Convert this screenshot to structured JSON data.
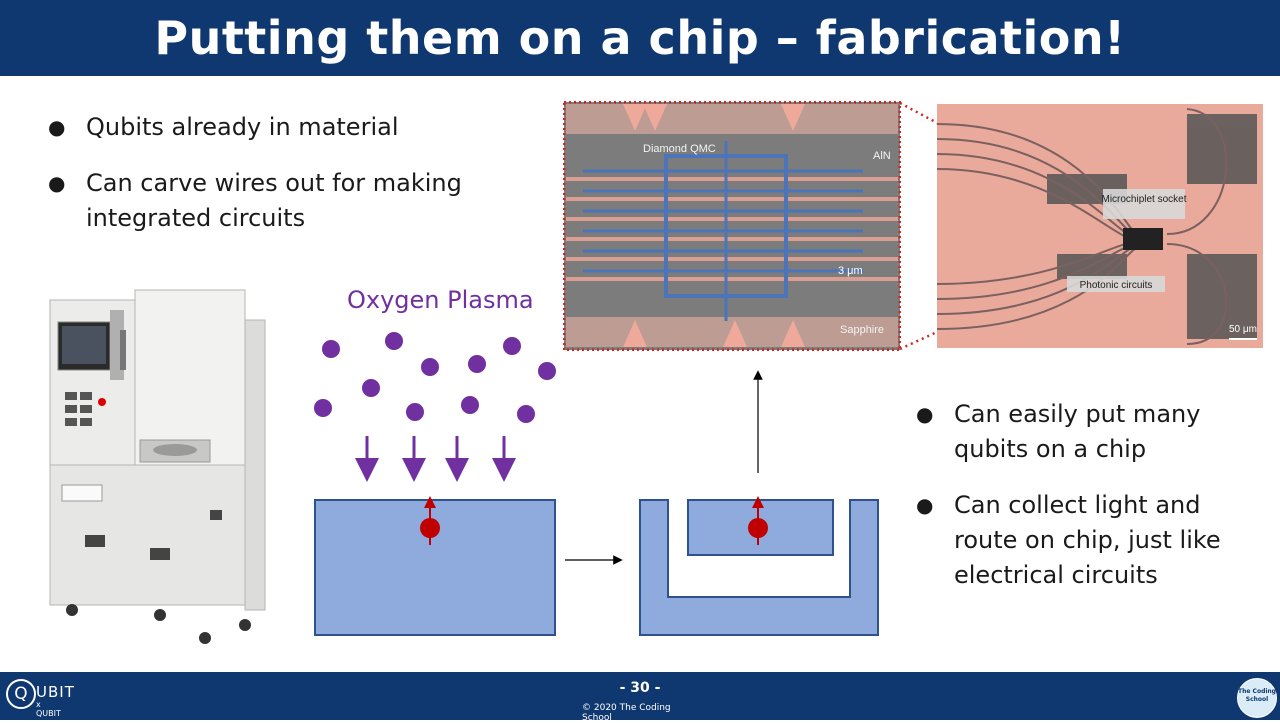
{
  "slide": {
    "title": "Putting them on a chip – fabrication!",
    "bullets_left": [
      "Qubits already in material",
      "Can carve wires out for making integrated circuits"
    ],
    "bullets_right": [
      "Can easily put many qubits on a chip",
      "Can collect light and route on chip, just like electrical circuits"
    ],
    "bullet_glyph": "●",
    "plasma_label": "Oxygen Plasma"
  },
  "micrograph": {
    "label_qmc": "Diamond QMC",
    "label_aln": "AlN",
    "label_scale": "3 μm",
    "label_sapphire": "Sapphire"
  },
  "chip_image": {
    "label_socket": "Microchiplet socket",
    "label_photonic": "Photonic circuits",
    "label_scale": "50 μm"
  },
  "footer": {
    "page_number": "- 30 -",
    "copyright": "© 2020 The Coding School",
    "logo_left_text": "UBIT",
    "logo_left_sub": "x QUBIT",
    "logo_left_letter": "Q",
    "logo_right_text": "The Coding School"
  },
  "colors": {
    "header_bg": "#0f3870",
    "plasma": "#7030a0",
    "substrate": "#8faadc",
    "substrate_border": "#2f528f",
    "qubit": "#c00000"
  }
}
